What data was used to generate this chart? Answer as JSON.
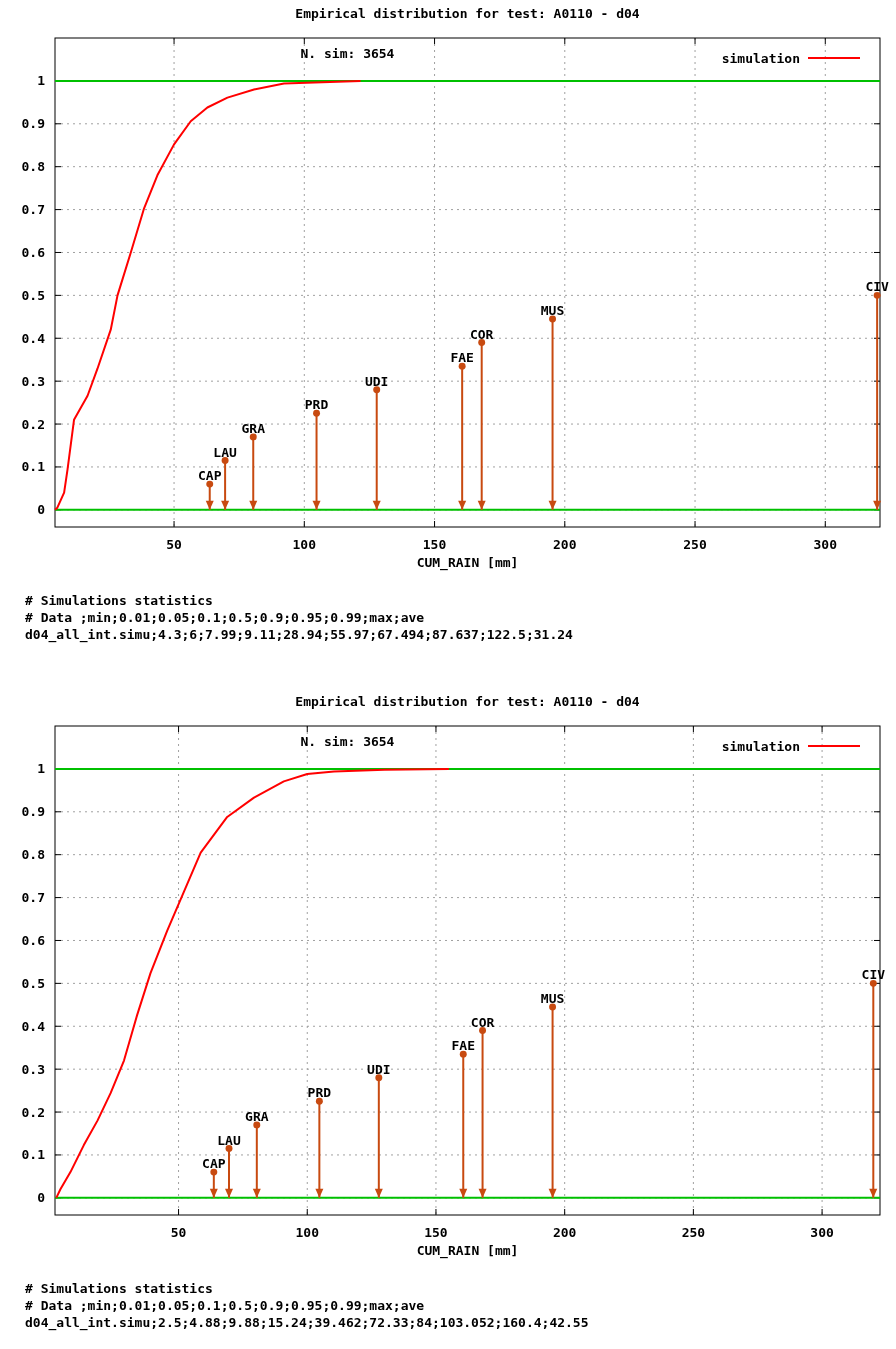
{
  "chart_data": [
    {
      "type": "line",
      "title": "Empirical distribution for test: A0110 - d04",
      "xlabel": "CUM_RAIN [mm]",
      "x": [
        4.3,
        5.2,
        7.8,
        9.1,
        11.6,
        16.8,
        20.6,
        25.7,
        28.3,
        33.4,
        38.5,
        43.6,
        50,
        56.4,
        62.8,
        70.5,
        80.7,
        92.2,
        121.6
      ],
      "series": [
        {
          "type": "line",
          "color": "#00c000",
          "x": [
            4.3,
            321
          ],
          "values": [
            0,
            0
          ]
        },
        {
          "type": "line",
          "color": "#00c000",
          "x": [
            4.3,
            321
          ],
          "values": [
            1,
            1
          ]
        },
        {
          "name": "simulation",
          "color": "#ff0000",
          "values": [
            0,
            0.005,
            0.04,
            0.094,
            0.21,
            0.266,
            0.329,
            0.42,
            0.5,
            0.6,
            0.703,
            0.78,
            0.852,
            0.906,
            0.938,
            0.961,
            0.98,
            0.994,
            1.0
          ]
        },
        {
          "type": "lollipop",
          "color": "#c84a10",
          "marker": "circle",
          "x": [
            63.7,
            69.6,
            80.4,
            104.7,
            127.8,
            160.6,
            168.1,
            195.3,
            319.9
          ],
          "values": [
            0.06,
            0.115,
            0.17,
            0.225,
            0.28,
            0.335,
            0.39,
            0.445,
            0.5
          ],
          "value_labels": [
            "CAP",
            "LAU",
            "GRA",
            "PRD",
            "UDI",
            "FAE",
            "COR",
            "MUS",
            "CIV"
          ]
        }
      ],
      "xlim": [
        4.3,
        321
      ],
      "ylim": [
        -0.04,
        1.1
      ],
      "line_style": "solid",
      "xticks": [
        50,
        100,
        150,
        200,
        250,
        300
      ],
      "yticks": [
        0,
        0.1,
        0.2,
        0.3,
        0.4,
        0.5,
        0.6,
        0.7,
        0.8,
        0.9,
        1
      ],
      "grid": true,
      "legend": "top right",
      "annotations": [
        "N. sim: 3654",
        "# Simulations statistics",
        "# Data ;min;0.01;0.05;0.1;0.5;0.9;0.95;0.99;max;ave",
        "d04_all_int.simu;4.3;6;7.99;9.11;28.94;55.97;67.494;87.637;122.5;31.24"
      ]
    },
    {
      "type": "line",
      "title": "Empirical distribution for test: A0110 - d04",
      "xlabel": "CUM_RAIN [mm]",
      "x": [
        2.5,
        4.1,
        8,
        13.2,
        18.5,
        23.6,
        28.8,
        33.9,
        39.1,
        45.6,
        52.1,
        58.6,
        68.9,
        79.3,
        90.9,
        100,
        110.4,
        130,
        155
      ],
      "series": [
        {
          "type": "line",
          "color": "#00c000",
          "x": [
            2,
            322.5
          ],
          "values": [
            0,
            0
          ]
        },
        {
          "type": "line",
          "color": "#00c000",
          "x": [
            2,
            322.5
          ],
          "values": [
            1,
            1
          ]
        },
        {
          "name": "simulation",
          "color": "#ff0000",
          "values": [
            0,
            0.02,
            0.06,
            0.123,
            0.18,
            0.244,
            0.32,
            0.426,
            0.524,
            0.623,
            0.714,
            0.805,
            0.888,
            0.933,
            0.971,
            0.988,
            0.994,
            0.998,
            1.0
          ]
        },
        {
          "type": "lollipop",
          "color": "#c84a10",
          "marker": "circle",
          "x": [
            63.7,
            69.6,
            80.4,
            104.7,
            127.8,
            160.6,
            168.1,
            195.3,
            319.9
          ],
          "values": [
            0.06,
            0.115,
            0.17,
            0.225,
            0.28,
            0.335,
            0.39,
            0.445,
            0.5
          ],
          "value_labels": [
            "CAP",
            "LAU",
            "GRA",
            "PRD",
            "UDI",
            "FAE",
            "COR",
            "MUS",
            "CIV"
          ]
        }
      ],
      "xlim": [
        2,
        322.5
      ],
      "ylim": [
        -0.04,
        1.1
      ],
      "line_style": "solid",
      "xticks": [
        50,
        100,
        150,
        200,
        250,
        300
      ],
      "yticks": [
        0,
        0.1,
        0.2,
        0.3,
        0.4,
        0.5,
        0.6,
        0.7,
        0.8,
        0.9,
        1
      ],
      "grid": true,
      "legend": "top right",
      "annotations": [
        "N. sim: 3654",
        "# Simulations statistics",
        "# Data ;min;0.01;0.05;0.1;0.5;0.9;0.95;0.99;max;ave",
        "d04_all_int.simu;2.5;4.88;9.88;15.24;39.462;72.33;84;103.052;160.4;42.55"
      ]
    }
  ]
}
